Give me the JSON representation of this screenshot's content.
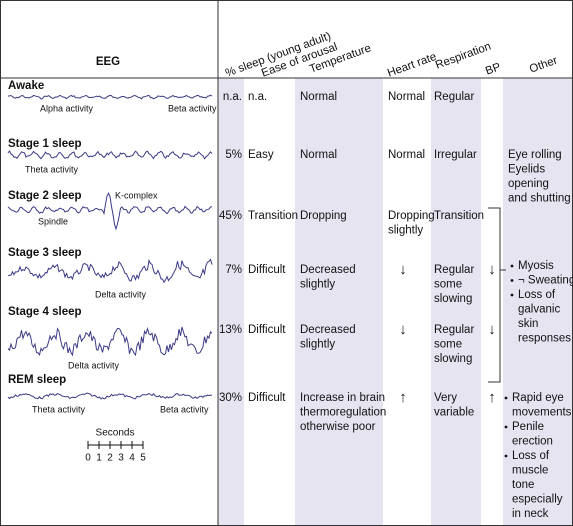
{
  "header": {
    "eeg": "EEG",
    "columns": [
      "% sleep (young adult)",
      "Ease of arousal",
      "Temperature",
      "Heart rate",
      "Respiration",
      "BP",
      "Other"
    ]
  },
  "rows": [
    {
      "stage": "Awake",
      "eeg_labels": [
        "Alpha activity",
        "Beta activity"
      ],
      "sleep": "n.a.",
      "arousal": "n.a.",
      "temperature": [
        "Normal"
      ],
      "heart_rate": [
        "Normal"
      ],
      "respiration": [
        "Regular"
      ]
    },
    {
      "stage": "Stage 1 sleep",
      "eeg_labels": [
        "Theta activity"
      ],
      "sleep": "5%",
      "arousal": "Easy",
      "temperature": [
        "Normal"
      ],
      "heart_rate": [
        "Normal"
      ],
      "respiration": [
        "Irregular"
      ],
      "other": [
        "Eye rolling",
        "Eyelids",
        "opening",
        "and shutting"
      ]
    },
    {
      "stage": "Stage 2 sleep",
      "eeg_labels": [
        "K-complex",
        "Spindle"
      ],
      "sleep": "45%",
      "arousal": "Transition",
      "temperature": [
        "Dropping"
      ],
      "heart_rate": [
        "Dropping",
        "slightly"
      ],
      "respiration": [
        "Transition"
      ]
    },
    {
      "stage": "Stage 3 sleep",
      "eeg_labels": [
        "Delta activity"
      ],
      "sleep": "7%",
      "arousal": "Difficult",
      "temperature": [
        "Decreased",
        "slightly"
      ],
      "heart_rate": [
        "↓"
      ],
      "respiration": [
        "Regular",
        "some",
        "slowing"
      ],
      "bp": "↓"
    },
    {
      "stage": "Stage 4 sleep",
      "eeg_labels": [
        "Delta activity"
      ],
      "sleep": "13%",
      "arousal": "Difficult",
      "temperature": [
        "Decreased",
        "slightly"
      ],
      "heart_rate": [
        "↓"
      ],
      "respiration": [
        "Regular",
        "some",
        "slowing"
      ],
      "bp": "↓"
    },
    {
      "stage": "REM sleep",
      "eeg_labels": [
        "Theta activity",
        "Beta activity"
      ],
      "sleep": "30%",
      "arousal": "Difficult",
      "temperature": [
        "Increase in brain",
        "thermoregulation",
        "otherwise poor"
      ],
      "heart_rate": [
        "↑"
      ],
      "respiration": [
        "Very",
        "variable"
      ],
      "bp": "↑",
      "other_items": [
        [
          "Rapid eye",
          "movements"
        ],
        [
          "Penile",
          "erection"
        ],
        [
          "Loss of",
          "muscle",
          "tone",
          "especially",
          "in neck"
        ]
      ]
    }
  ],
  "other_group": [
    [
      "Myosis"
    ],
    [
      "¬ Sweating"
    ],
    [
      "Loss of",
      "galvanic",
      "skin",
      "responses"
    ]
  ],
  "scale": {
    "title": "Seconds",
    "labels": [
      "0",
      "1",
      "2",
      "3",
      "4",
      "5"
    ]
  }
}
